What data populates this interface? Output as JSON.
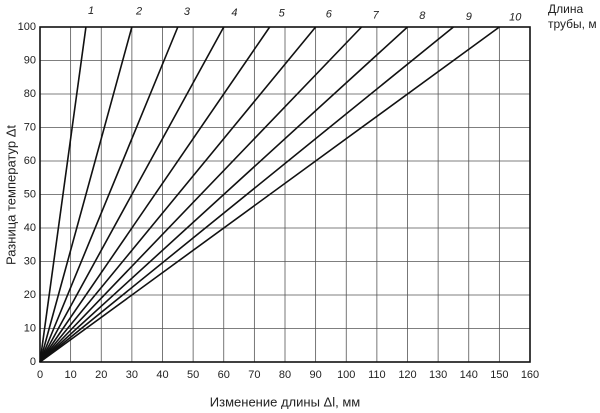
{
  "chart_data": {
    "type": "line",
    "xlabel": "Изменение длины Δl, мм",
    "ylabel": "Разница температур Δt",
    "legend_title": "Длина трубы, м",
    "xlim": [
      0,
      160
    ],
    "ylim": [
      0,
      100
    ],
    "xticks": [
      0,
      10,
      20,
      30,
      40,
      50,
      60,
      70,
      80,
      90,
      100,
      110,
      120,
      130,
      140,
      150,
      160
    ],
    "yticks": [
      0,
      10,
      20,
      30,
      40,
      50,
      60,
      70,
      80,
      90,
      100
    ],
    "grid": true,
    "series": [
      {
        "name": "1",
        "color": "#111",
        "x": [
          0,
          15
        ],
        "values": [
          0,
          100
        ]
      },
      {
        "name": "2",
        "color": "#111",
        "x": [
          0,
          30
        ],
        "values": [
          0,
          100
        ]
      },
      {
        "name": "3",
        "color": "#111",
        "x": [
          0,
          45
        ],
        "values": [
          0,
          100
        ]
      },
      {
        "name": "4",
        "color": "#111",
        "x": [
          0,
          60
        ],
        "values": [
          0,
          100
        ]
      },
      {
        "name": "5",
        "color": "#111",
        "x": [
          0,
          75
        ],
        "values": [
          0,
          100
        ]
      },
      {
        "name": "6",
        "color": "#111",
        "x": [
          0,
          90
        ],
        "values": [
          0,
          100
        ]
      },
      {
        "name": "7",
        "color": "#111",
        "x": [
          0,
          105
        ],
        "values": [
          0,
          100
        ]
      },
      {
        "name": "8",
        "color": "#111",
        "x": [
          0,
          120
        ],
        "values": [
          0,
          100
        ]
      },
      {
        "name": "9",
        "color": "#111",
        "x": [
          0,
          135
        ],
        "values": [
          0,
          100
        ]
      },
      {
        "name": "10",
        "color": "#111",
        "x": [
          0,
          150
        ],
        "values": [
          0,
          100
        ]
      }
    ]
  }
}
